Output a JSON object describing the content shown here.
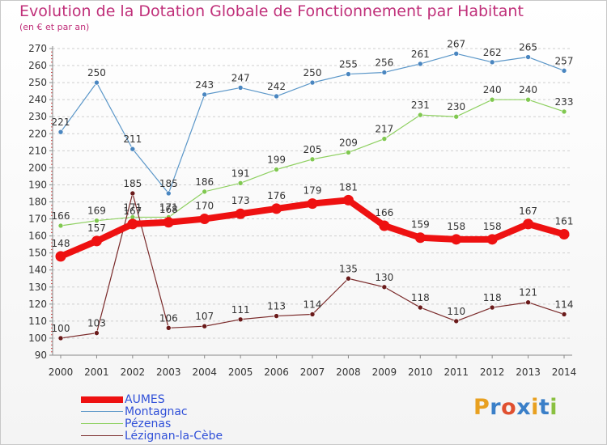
{
  "header": {
    "title": "Evolution de la Dotation Globale de Fonctionnement par Habitant",
    "subtitle": "(en € et par an)"
  },
  "logo": {
    "text": "Proxiti",
    "letter_colors": [
      "#e8a020",
      "#3a7fc8",
      "#e05030",
      "#3a7fc8",
      "#e8a020",
      "#3a7fc8",
      "#8ac040"
    ]
  },
  "chart_data": {
    "type": "line",
    "title": "Evolution de la Dotation Globale de Fonctionnement par Habitant",
    "subtitle": "(en € et par an)",
    "x": [
      "2000",
      "2001",
      "2002",
      "2003",
      "2004",
      "2005",
      "2006",
      "2007",
      "2008",
      "2009",
      "2010",
      "2011",
      "2012",
      "2013",
      "2014"
    ],
    "yticks": [
      90,
      100,
      110,
      120,
      130,
      140,
      150,
      160,
      170,
      180,
      190,
      200,
      210,
      220,
      230,
      240,
      250,
      260,
      270
    ],
    "ylim": [
      90,
      270
    ],
    "grid": true,
    "legend_position": "bottom-left",
    "series": [
      {
        "name": "Montagnac",
        "color": "#5a96c8",
        "marker": "#4a86c0",
        "width": 1.2,
        "values": [
          221,
          250,
          211,
          185,
          243,
          247,
          242,
          250,
          255,
          256,
          261,
          267,
          262,
          265,
          257
        ],
        "labels": [
          "221",
          "250",
          "211",
          "185",
          "243",
          "247",
          "242",
          "250",
          "255",
          "256",
          "261",
          "267",
          "262",
          "265",
          "257"
        ]
      },
      {
        "name": "Pézenas",
        "color": "#8ed060",
        "marker": "#80c850",
        "width": 1.2,
        "values": [
          166,
          169,
          171,
          171,
          186,
          191,
          199,
          205,
          209,
          217,
          231,
          230,
          240,
          240,
          233
        ],
        "labels": [
          "166",
          "169",
          "171",
          "171",
          "186",
          "191",
          "199",
          "205",
          "209",
          "217",
          "231",
          "230",
          "240",
          "240",
          "233"
        ]
      },
      {
        "name": "Lézignan-la-Cèbe",
        "color": "#7a2a2a",
        "marker": "#6a1a1a",
        "width": 1.2,
        "values": [
          100,
          103,
          185,
          106,
          107,
          111,
          113,
          114,
          135,
          130,
          118,
          110,
          118,
          121,
          114
        ],
        "labels": [
          "100",
          "103",
          "185",
          "106",
          "107",
          "111",
          "113",
          "114",
          "135",
          "130",
          "118",
          "110",
          "118",
          "121",
          "114"
        ]
      },
      {
        "name": "AUMES",
        "color": "#ee1111",
        "marker": "#ee1111",
        "width": 8,
        "values": [
          148,
          157,
          167,
          168,
          170,
          173,
          176,
          179,
          181,
          166,
          159,
          158,
          158,
          167,
          161
        ],
        "labels": [
          "148",
          "157",
          "167",
          "168",
          "170",
          "173",
          "176",
          "179",
          "181",
          "166",
          "159",
          "158",
          "158",
          "167",
          "161"
        ]
      }
    ],
    "legend": [
      {
        "name": "AUMES",
        "color": "#ee1111",
        "text_color": "#3050d8",
        "width": 8
      },
      {
        "name": "Montagnac",
        "color": "#5a96c8",
        "text_color": "#3050d8",
        "width": 1.5
      },
      {
        "name": "Pézenas",
        "color": "#8ed060",
        "text_color": "#3050d8",
        "width": 1.5
      },
      {
        "name": "Lézignan-la-Cèbe",
        "color": "#7a2a2a",
        "text_color": "#3050d8",
        "width": 1.5
      }
    ]
  }
}
